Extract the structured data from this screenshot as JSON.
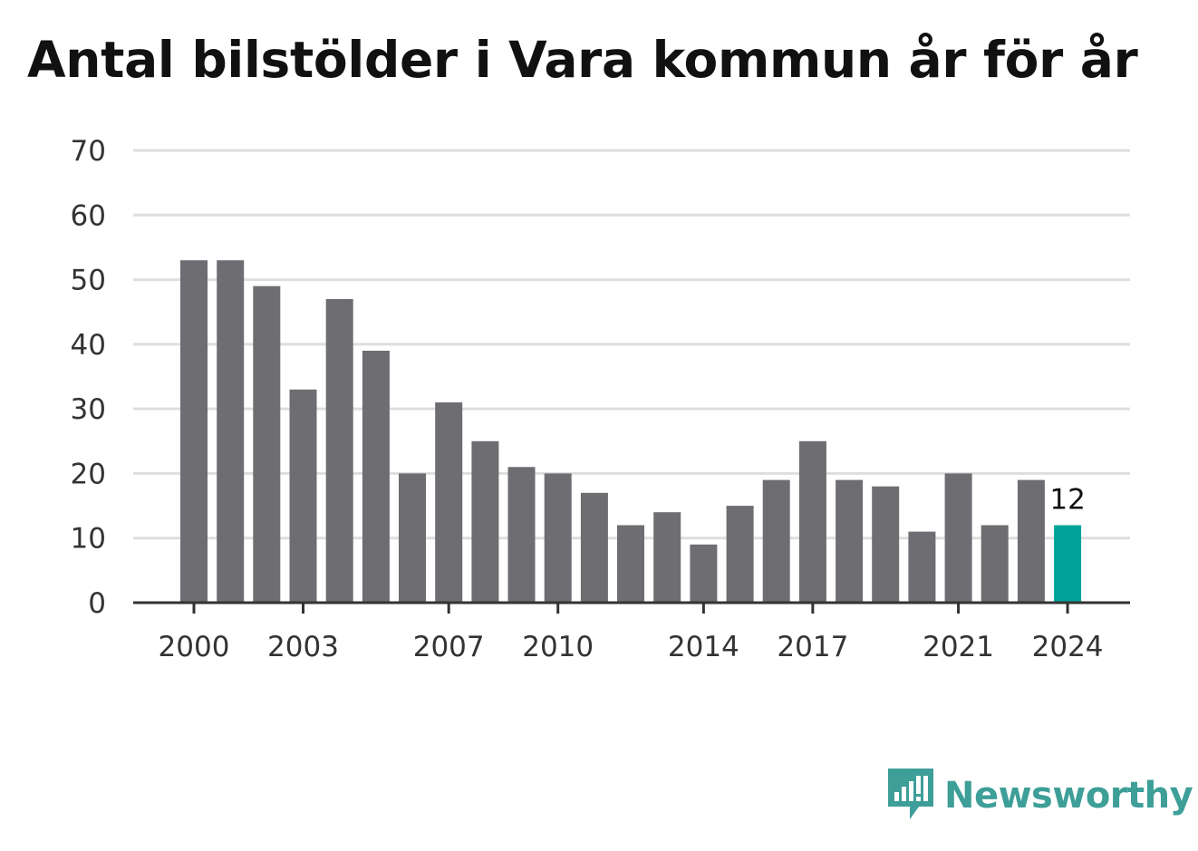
{
  "title": "Antal bilstölder i Vara kommun år för år",
  "brand": "Newsworthy",
  "colors": {
    "bar": "#6e6d72",
    "highlight": "#00a398",
    "grid": "#dedede",
    "axis": "#333333",
    "brand": "#3e9e98"
  },
  "chart_data": {
    "type": "bar",
    "categories": [
      "2000",
      "2001",
      "2002",
      "2003",
      "2004",
      "2005",
      "2006",
      "2007",
      "2008",
      "2009",
      "2010",
      "2011",
      "2012",
      "2013",
      "2014",
      "2015",
      "2016",
      "2017",
      "2018",
      "2019",
      "2020",
      "2021",
      "2022",
      "2023",
      "2024"
    ],
    "values": [
      53,
      53,
      49,
      33,
      47,
      39,
      20,
      31,
      25,
      21,
      20,
      17,
      12,
      14,
      9,
      15,
      19,
      25,
      19,
      18,
      11,
      20,
      12,
      19,
      12
    ],
    "xtick_labels": [
      "2000",
      "2003",
      "2007",
      "2010",
      "2014",
      "2017",
      "2021",
      "2024"
    ],
    "yticks": [
      0,
      10,
      20,
      30,
      40,
      50,
      60,
      70
    ],
    "ylim": [
      0,
      70
    ],
    "highlight_category": "2024",
    "data_labels": [
      {
        "category": "2024",
        "text": "12"
      }
    ],
    "grid": true,
    "legend": "none"
  }
}
